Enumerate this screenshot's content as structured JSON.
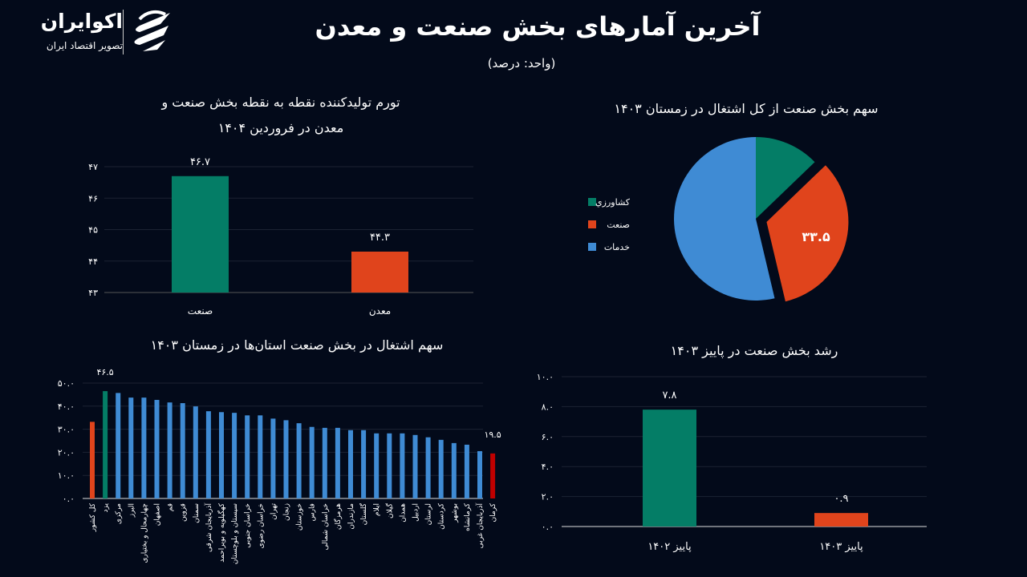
{
  "header": {
    "title": "آخرین آمارهای بخش صنعت و معدن",
    "subtitle": "(واحد: درصد)",
    "logo": {
      "name": "اکوایران",
      "tagline": "تصویر اقتصاد ایران"
    }
  },
  "colors": {
    "background": "#030a1a",
    "green": "#047d66",
    "orange": "#e0441c",
    "blue": "#3f8bd4",
    "red": "#c00000",
    "grid": "#1c2333"
  },
  "chart_data": [
    {
      "id": "ppi",
      "type": "bar",
      "title_line1": "تورم تولیدکننده نقطه به نقطه بخش صنعت و",
      "title_line2": "معدن در فروردین ۱۴۰۴",
      "categories": [
        "صنعت",
        "معدن"
      ],
      "values": [
        46.7,
        44.3
      ],
      "data_labels": [
        "۴۶.۷",
        "۴۴.۳"
      ],
      "colors": [
        "#047d66",
        "#e0441c"
      ],
      "ylim": [
        43,
        47
      ],
      "yticks": [
        43,
        44,
        45,
        46,
        47
      ],
      "ytick_labels": [
        "۴۳",
        "۴۴",
        "۴۵",
        "۴۶",
        "۴۷"
      ],
      "grid": true
    },
    {
      "id": "employment-share",
      "type": "pie",
      "title": "سهم بخش صنعت از کل اشتغال در زمستان ۱۴۰۳",
      "labels": [
        "کشاورزي",
        "صنعت",
        "خدمات"
      ],
      "values": [
        12.8,
        33.5,
        53.7
      ],
      "colors": [
        "#047d66",
        "#e0441c",
        "#3f8bd4"
      ],
      "data_label": "۳۳.۵",
      "exploded": "صنعت",
      "legend": "left"
    },
    {
      "id": "provinces",
      "type": "bar",
      "title": "سهم اشتغال در بخش صنعت استان‌ها در زمستان ۱۴۰۳",
      "categories": [
        "کل کشور",
        "یزد",
        "مرکزی",
        "البرز",
        "چهارمحال و بختیاری",
        "اصفهان",
        "قم",
        "قزوین",
        "سمنان",
        "آذربایجان شرقی",
        "کهگیلویه و بویراحمد",
        "سیستان و بلوچستان",
        "خراسان جنوبی",
        "خراسان رضوی",
        "تهران",
        "زنجان",
        "خوزستان",
        "فارس",
        "خراسان شمالی",
        "هرمزگان",
        "مازندران",
        "گلستان",
        "ایلام",
        "گیلان",
        "همدان",
        "اردبیل",
        "لرستان",
        "کردستان",
        "بوشهر",
        "کرمانشاه",
        "آذربایجان غربی",
        "کرمان"
      ],
      "values": [
        33.2,
        46.5,
        45.7,
        43.7,
        43.7,
        42.7,
        41.6,
        41.3,
        39.9,
        37.8,
        37.4,
        37.1,
        36.0,
        36.0,
        34.6,
        33.9,
        32.6,
        31.0,
        30.6,
        30.6,
        29.6,
        29.6,
        28.2,
        28.2,
        28.2,
        27.5,
        26.5,
        25.4,
        24.0,
        23.3,
        20.5,
        19.5
      ],
      "highlight_labels": {
        "1": "۴۶.۵",
        "31": "۱۹.۵"
      },
      "highlight_colors": {
        "0": "#e0441c",
        "1": "#047d66",
        "31": "#c00000"
      },
      "default_color": "#3f8bd4",
      "ylim": [
        0,
        50
      ],
      "yticks": [
        0,
        10,
        20,
        30,
        40,
        50
      ],
      "ytick_labels": [
        "۰.۰",
        "۱۰.۰",
        "۲۰.۰",
        "۳۰.۰",
        "۴۰.۰",
        "۵۰.۰"
      ],
      "grid": true
    },
    {
      "id": "growth",
      "type": "bar",
      "title": "رشد بخش صنعت در پاییز ۱۴۰۳",
      "categories": [
        "پاییز ۱۴۰۲",
        "پاییز ۱۴۰۳"
      ],
      "values": [
        7.8,
        0.9
      ],
      "data_labels": [
        "۷.۸",
        "۰.۹"
      ],
      "colors": [
        "#047d66",
        "#e0441c"
      ],
      "ylim": [
        0,
        10
      ],
      "yticks": [
        0,
        2,
        4,
        6,
        8,
        10
      ],
      "ytick_labels": [
        "۰.۰",
        "۲.۰",
        "۴.۰",
        "۶.۰",
        "۸.۰",
        "۱۰.۰"
      ],
      "grid": true
    }
  ]
}
